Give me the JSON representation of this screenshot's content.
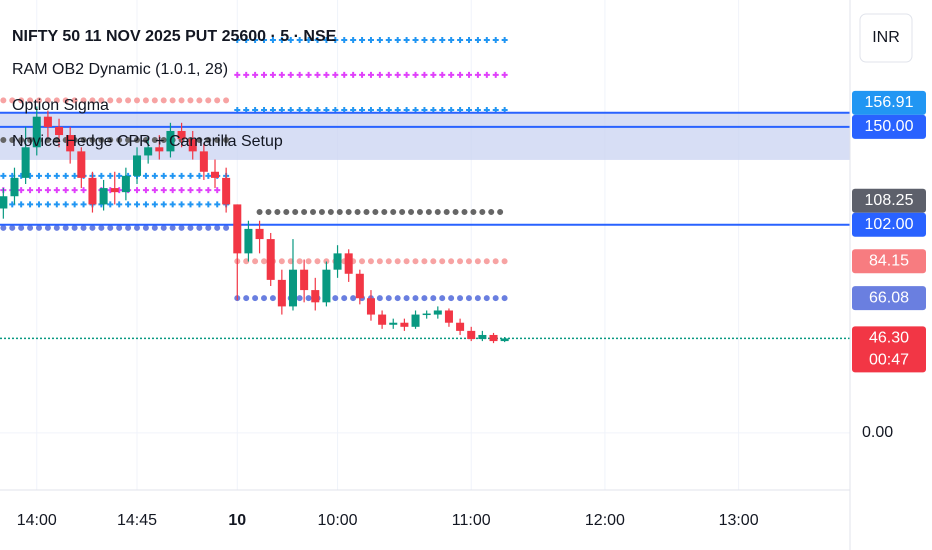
{
  "chart_data": {
    "type": "candlestick",
    "legend": [
      "NIFTY 50 11 NOV 2025 PUT 25600 · 5 · NSE",
      "RAM OB2 Dynamic (1.0.1, 28)",
      "Option Sigma",
      "Novice Hedge CPR + Camarilla Setup"
    ],
    "currency": "INR",
    "xlim": [
      -3.3,
      73
    ],
    "ylim": [
      -28,
      212.2
    ],
    "xticks": [
      {
        "value": 0,
        "label": "14:00"
      },
      {
        "value": 9,
        "label": "14:45"
      },
      {
        "value": 18,
        "label": "10"
      },
      {
        "value": 27,
        "label": "10:00"
      },
      {
        "value": 39,
        "label": "11:00"
      },
      {
        "value": 51,
        "label": "12:00"
      },
      {
        "value": 63,
        "label": "13:00"
      }
    ],
    "yticks": [
      {
        "value": 0,
        "label": "0.00"
      }
    ],
    "grid": true,
    "up_color": "#089981",
    "down_color": "#f23645",
    "candles": {
      "x": [
        -3,
        -2,
        -1,
        0,
        1,
        2,
        3,
        4,
        5,
        6,
        7,
        8,
        9,
        10,
        11,
        12,
        13,
        14,
        15,
        16,
        17,
        18,
        19,
        20,
        21,
        22,
        23,
        24,
        25,
        26,
        27,
        28,
        29,
        30,
        31,
        32,
        33,
        34,
        35,
        36,
        37,
        38,
        39,
        40,
        41,
        42
      ],
      "open": [
        110,
        116,
        125,
        140,
        155,
        150,
        146,
        138,
        125,
        112,
        120,
        118,
        126,
        136,
        140,
        138,
        148,
        144,
        138,
        128,
        125,
        112,
        88,
        100,
        95,
        75,
        62,
        80,
        70,
        64,
        80,
        88,
        78,
        66,
        58,
        53,
        54,
        52,
        58,
        58,
        60,
        54,
        50,
        46,
        48,
        45
      ],
      "high": [
        120,
        130,
        150,
        160,
        158,
        154,
        150,
        140,
        128,
        124,
        128,
        130,
        140,
        145,
        146,
        152,
        152,
        148,
        142,
        134,
        130,
        112,
        104,
        104,
        98,
        80,
        95,
        85,
        76,
        84,
        92,
        90,
        80,
        70,
        60,
        56,
        56,
        60,
        60,
        62,
        61,
        56,
        52,
        50,
        49,
        47
      ],
      "low": [
        105,
        112,
        122,
        136,
        145,
        140,
        132,
        120,
        108,
        109,
        112,
        114,
        122,
        132,
        134,
        135,
        140,
        134,
        124,
        120,
        108,
        65,
        84,
        88,
        72,
        58,
        60,
        64,
        60,
        62,
        76,
        74,
        63,
        55,
        51,
        51,
        50,
        51,
        56,
        56,
        52,
        48,
        45,
        45,
        44,
        44.5
      ],
      "close": [
        116,
        125,
        140,
        155,
        150,
        146,
        138,
        125,
        112,
        120,
        118,
        126,
        136,
        140,
        138,
        148,
        144,
        138,
        128,
        125,
        112,
        88,
        100,
        95,
        75,
        62,
        80,
        70,
        64,
        80,
        88,
        78,
        66,
        58,
        53,
        54,
        52,
        58,
        58.5,
        60,
        54,
        50,
        46,
        48,
        45,
        46.3
      ]
    },
    "zones": [
      {
        "from": 133.8,
        "to": 156.91,
        "color": "#c9d3f2"
      }
    ],
    "hlines": [
      {
        "value": 156.91,
        "color": "#2962ff"
      },
      {
        "value": 150,
        "color": "#2962ff"
      },
      {
        "value": 102,
        "color": "#2962ff"
      },
      {
        "value": 46.3,
        "color": "#089981"
      }
    ],
    "levels": [
      {
        "value": 163,
        "from": -3,
        "to": 17,
        "style": "dots",
        "color": "#f7a3a3"
      },
      {
        "value": 143.6,
        "from": -3,
        "to": 17,
        "style": "dots",
        "color": "#666666"
      },
      {
        "value": 126,
        "from": -3,
        "to": 17,
        "style": "crosses",
        "color": "#2196f3"
      },
      {
        "value": 119,
        "from": -3,
        "to": 17,
        "style": "crosses",
        "color": "#e040fb"
      },
      {
        "value": 112,
        "from": -3,
        "to": 17,
        "style": "crosses",
        "color": "#2196f3"
      },
      {
        "value": 100.5,
        "from": -3,
        "to": 17,
        "style": "dots",
        "color": "#6a7fe0"
      },
      {
        "value": 192.6,
        "from": 18,
        "to": 42,
        "style": "crosses",
        "color": "#2196f3"
      },
      {
        "value": 175.5,
        "from": 18,
        "to": 42,
        "style": "crosses",
        "color": "#e040fb"
      },
      {
        "value": 158.3,
        "from": 18,
        "to": 42,
        "style": "crosses",
        "color": "#2196f3"
      },
      {
        "value": 108.25,
        "from": 20,
        "to": 42,
        "style": "dots",
        "color": "#666666"
      },
      {
        "value": 84.15,
        "from": 18,
        "to": 42,
        "style": "dots",
        "color": "#f7a3a3"
      },
      {
        "value": 66.08,
        "from": 18,
        "to": 42,
        "style": "dots",
        "color": "#6a7fe0"
      }
    ],
    "price_labels": [
      {
        "value": 156.91,
        "label": "156.91",
        "color": "#2196f3"
      },
      {
        "value": 150,
        "label": "150.00",
        "color": "#2962ff"
      },
      {
        "value": 108.25,
        "label": "108.25",
        "color": "#5d606b"
      },
      {
        "value": 102,
        "label": "102.00",
        "color": "#2962ff"
      },
      {
        "value": 84.15,
        "label": "84.15",
        "color": "#f77c80"
      },
      {
        "value": 66.08,
        "label": "66.08",
        "color": "#6a7fe0"
      },
      {
        "value": 46.3,
        "label": "46.30",
        "color": "#f23645",
        "countdown": "00:47"
      }
    ]
  }
}
